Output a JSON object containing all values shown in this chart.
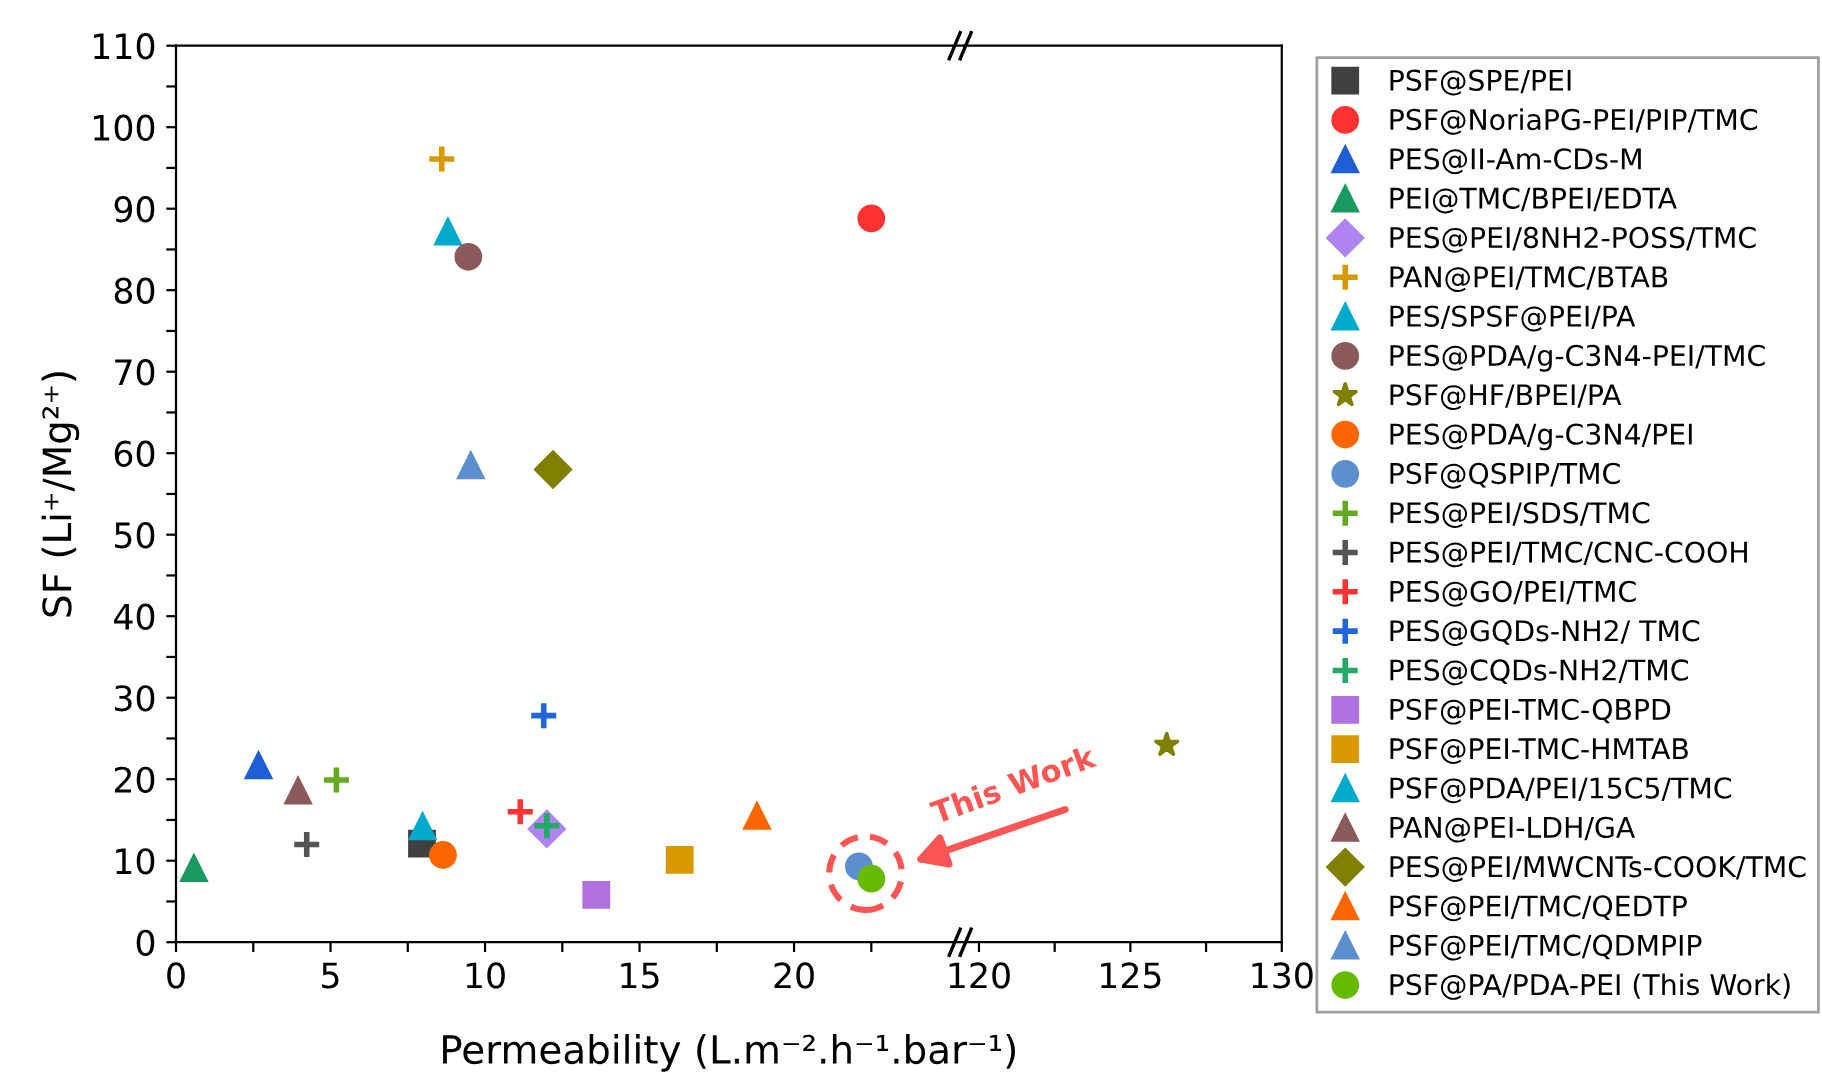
{
  "chart_data": [
    {
      "type": "scatter",
      "ylabel": "SF (Li⁺/Mg²⁺)",
      "xlabel": "Permeability (L.m⁻².h⁻¹.bar⁻¹)",
      "xlim": [
        0,
        25.5
      ],
      "ylim": [
        0,
        110
      ],
      "xticks": [
        0,
        {
          "value": 2.5,
          "label": null
        },
        5,
        {
          "value": 7.5,
          "label": null
        },
        10,
        {
          "value": 12.5,
          "label": null
        },
        15,
        {
          "value": 17.5,
          "label": null
        },
        20,
        {
          "value": 22.5,
          "label": null
        }
      ],
      "yticks": [
        0,
        {
          "value": 5,
          "label": null
        },
        10,
        {
          "value": 15,
          "label": null
        },
        20,
        {
          "value": 25,
          "label": null
        },
        30,
        {
          "value": 35,
          "label": null
        },
        40,
        {
          "value": 45,
          "label": null
        },
        50,
        {
          "value": 55,
          "label": null
        },
        60,
        {
          "value": 65,
          "label": null
        },
        70,
        {
          "value": 75,
          "label": null
        },
        80,
        {
          "value": 85,
          "label": null
        },
        90,
        {
          "value": 95,
          "label": null
        },
        100,
        {
          "value": 105,
          "label": null
        },
        110
      ],
      "grid": false,
      "legend": "right",
      "annotations": [
        "This Work"
      ],
      "series": [
        {
          "name": "PSF@SPE/PEI",
          "color": "#404040",
          "marker": "square",
          "x": [
            7.96
          ],
          "values": [
            12.1
          ]
        },
        {
          "name": "PSF@NoriaPG-PEI/PIP/TMC",
          "color": "#ff3333",
          "marker": "circle",
          "x": [
            22.5
          ],
          "values": [
            88.8
          ]
        },
        {
          "name": "PES@II-Am-CDs-M",
          "color": "#1f5fd6",
          "marker": "triangle",
          "x": [
            2.67
          ],
          "values": [
            21.7
          ]
        },
        {
          "name": "PEI@TMC/BPEI/EDTA",
          "color": "#1a9960",
          "marker": "triangle",
          "x": [
            0.58
          ],
          "values": [
            9.1
          ]
        },
        {
          "name": "PES@PEI/8NH2-POSS/TMC",
          "color": "#b084f0",
          "marker": "diamond",
          "x": [
            12.0
          ],
          "values": [
            13.9
          ]
        },
        {
          "name": "PAN@PEI/TMC/BTAB",
          "color": "#d89a00",
          "marker": "cross",
          "x": [
            8.6
          ],
          "values": [
            96.1
          ]
        },
        {
          "name": "PES/SPSF@PEI/PA",
          "color": "#00aacc",
          "marker": "triangle",
          "x": [
            8.8
          ],
          "values": [
            87.2
          ]
        },
        {
          "name": "PES@PDA/g-C3N4-PEI/TMC",
          "color": "#8b5a5a",
          "marker": "circle",
          "x": [
            9.46
          ],
          "values": [
            84.1
          ]
        },
        {
          "name": "PSF@HF/BPEI/PA",
          "color": "#808000",
          "marker": "star",
          "x": [
            null
          ],
          "values": [
            null
          ]
        },
        {
          "name": "PES@PDA/g-C3N4/PEI",
          "color": "#ff6600",
          "marker": "circle",
          "x": [
            8.64
          ],
          "values": [
            10.7
          ]
        },
        {
          "name": "PSF@QSPIP/TMC",
          "color": "#5b8fd0",
          "marker": "circle",
          "x": [
            22.1
          ],
          "values": [
            9.3
          ]
        },
        {
          "name": "PES@PEI/SDS/TMC",
          "color": "#66aa22",
          "marker": "cross",
          "x": [
            5.19
          ],
          "values": [
            19.9
          ]
        },
        {
          "name": "PES@PEI/TMC/CNC-COOH",
          "color": "#555555",
          "marker": "cross",
          "x": [
            4.23
          ],
          "values": [
            12.0
          ]
        },
        {
          "name": "PES@GO/PEI/TMC",
          "color": "#ff3333",
          "marker": "cross",
          "x": [
            11.14
          ],
          "values": [
            16.0
          ]
        },
        {
          "name": "PES@GQDs-NH2/ TMC",
          "color": "#2266dd",
          "marker": "cross",
          "x": [
            11.9
          ],
          "values": [
            27.8
          ]
        },
        {
          "name": "PES@CQDs-NH2/TMC",
          "color": "#22aa66",
          "marker": "cross",
          "x": [
            12.0
          ],
          "values": [
            14.3
          ]
        },
        {
          "name": "PSF@PEI-TMC-QBPD",
          "color": "#b070e0",
          "marker": "square",
          "x": [
            13.6
          ],
          "values": [
            5.8
          ]
        },
        {
          "name": "PSF@PEI-TMC-HMTAB",
          "color": "#d89a00",
          "marker": "square",
          "x": [
            16.3
          ],
          "values": [
            10.1
          ]
        },
        {
          "name": "PSF@PDA/PEI/15C5/TMC",
          "color": "#00aacc",
          "marker": "triangle",
          "x": [
            7.98
          ],
          "values": [
            14.2
          ]
        },
        {
          "name": "PAN@PEI-LDH/GA",
          "color": "#8b5a5a",
          "marker": "triangle",
          "x": [
            3.95
          ],
          "values": [
            18.6
          ]
        },
        {
          "name": "PES@PEI/MWCNTs-COOK/TMC",
          "color": "#808000",
          "marker": "diamond",
          "x": [
            12.2
          ],
          "values": [
            58.0
          ]
        },
        {
          "name": "PSF@PEI/TMC/QEDTP",
          "color": "#ff6600",
          "marker": "triangle",
          "x": [
            18.8
          ],
          "values": [
            15.5
          ]
        },
        {
          "name": "PSF@PEI/TMC/QDMPIP",
          "color": "#5b8fd0",
          "marker": "triangle",
          "x": [
            9.54
          ],
          "values": [
            58.5
          ]
        },
        {
          "name": "PSF@PA/PDA-PEI (This Work)",
          "color": "#66bb00",
          "marker": "circle",
          "x": [
            22.5
          ],
          "values": [
            7.8
          ]
        }
      ]
    },
    {
      "type": "scatter",
      "xlim": [
        119.5,
        130
      ],
      "ylim": [
        0,
        110
      ],
      "tick_labels": "x",
      "xticks": [
        120,
        {
          "value": 122.5,
          "label": null
        },
        125,
        {
          "value": 127.5,
          "label": null
        },
        130
      ],
      "grid": false,
      "series": [
        {
          "color": "#808000",
          "marker": "star",
          "x": [
            126.2
          ],
          "values": [
            24.2
          ]
        }
      ]
    }
  ]
}
